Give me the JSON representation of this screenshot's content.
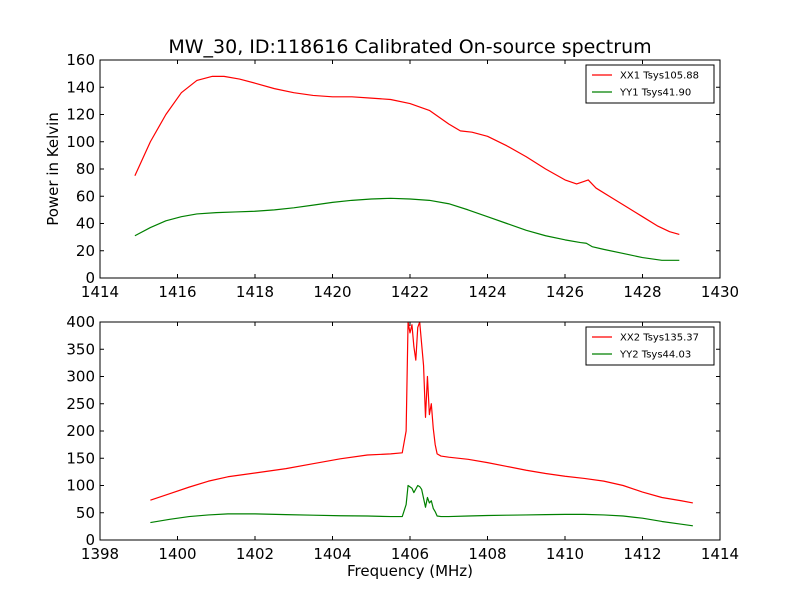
{
  "figure": {
    "title": "MW_30, ID:118616 Calibrated On-source spectrum",
    "xlabel": "Frequency (MHz)",
    "ylabel": "Power in Kelvin"
  },
  "chart_data": [
    {
      "type": "line",
      "xlim": [
        1414,
        1430
      ],
      "ylim": [
        0,
        160
      ],
      "xticks": [
        1414,
        1416,
        1418,
        1420,
        1422,
        1424,
        1426,
        1428,
        1430
      ],
      "yticks": [
        0,
        20,
        40,
        60,
        80,
        100,
        120,
        140,
        160
      ],
      "grid": false,
      "legend_position": "top-right",
      "series": [
        {
          "name": "XX1 Tsys105.88",
          "color": "#ff0000",
          "x": [
            1414.9,
            1415.3,
            1415.7,
            1416.1,
            1416.5,
            1416.9,
            1417.2,
            1417.6,
            1418.0,
            1418.5,
            1419.0,
            1419.5,
            1420.0,
            1420.5,
            1421.0,
            1421.5,
            1422.0,
            1422.5,
            1423.0,
            1423.3,
            1423.6,
            1424.0,
            1424.5,
            1425.0,
            1425.5,
            1426.0,
            1426.3,
            1426.5,
            1426.6,
            1426.8,
            1427.2,
            1427.6,
            1428.0,
            1428.4,
            1428.7,
            1428.95
          ],
          "y": [
            75,
            100,
            120,
            136,
            145,
            148,
            148,
            146,
            143,
            139,
            136,
            134,
            133,
            133,
            132,
            131,
            128,
            123,
            113,
            108,
            107,
            104,
            97,
            89,
            80,
            72,
            69,
            71,
            72,
            66,
            59,
            52,
            45,
            38,
            34,
            32
          ]
        },
        {
          "name": "YY1 Tsys41.90",
          "color": "#008000",
          "x": [
            1414.9,
            1415.3,
            1415.7,
            1416.1,
            1416.5,
            1417.0,
            1417.5,
            1418.0,
            1418.5,
            1419.0,
            1419.5,
            1420.0,
            1420.5,
            1421.0,
            1421.5,
            1422.0,
            1422.5,
            1423.0,
            1423.5,
            1424.0,
            1424.5,
            1425.0,
            1425.5,
            1426.0,
            1426.4,
            1426.55,
            1426.7,
            1427.0,
            1427.5,
            1428.0,
            1428.5,
            1428.95
          ],
          "y": [
            31,
            37,
            42,
            45,
            47,
            48,
            48.5,
            49,
            50,
            51.5,
            53.5,
            55.5,
            57,
            58,
            58.5,
            58,
            57,
            54.5,
            50,
            45,
            40,
            35,
            31,
            28,
            26,
            25.5,
            23,
            21,
            18,
            15,
            13,
            13
          ]
        }
      ]
    },
    {
      "type": "line",
      "xlim": [
        1398,
        1414
      ],
      "ylim": [
        0,
        400
      ],
      "xticks": [
        1398,
        1400,
        1402,
        1404,
        1406,
        1408,
        1410,
        1412,
        1414
      ],
      "yticks": [
        0,
        50,
        100,
        150,
        200,
        250,
        300,
        350,
        400
      ],
      "grid": false,
      "legend_position": "top-right",
      "series": [
        {
          "name": "XX2 Tsys135.37",
          "color": "#ff0000",
          "x": [
            1399.3,
            1399.8,
            1400.3,
            1400.8,
            1401.3,
            1402.0,
            1402.8,
            1403.5,
            1404.2,
            1404.9,
            1405.5,
            1405.8,
            1405.9,
            1405.95,
            1406.0,
            1406.05,
            1406.1,
            1406.15,
            1406.2,
            1406.25,
            1406.3,
            1406.35,
            1406.4,
            1406.45,
            1406.5,
            1406.55,
            1406.6,
            1406.65,
            1406.7,
            1406.8,
            1407.0,
            1407.5,
            1408.0,
            1408.5,
            1409.0,
            1409.5,
            1410.0,
            1410.5,
            1411.0,
            1411.5,
            1412.0,
            1412.5,
            1413.0,
            1413.3
          ],
          "y": [
            73,
            85,
            97,
            108,
            116,
            123,
            131,
            140,
            149,
            156,
            158,
            160,
            200,
            400,
            380,
            395,
            355,
            330,
            390,
            400,
            360,
            320,
            225,
            300,
            230,
            250,
            205,
            175,
            158,
            154,
            152,
            148,
            142,
            135,
            128,
            122,
            117,
            113,
            108,
            100,
            88,
            78,
            72,
            68
          ]
        },
        {
          "name": "YY2 Tsys44.03",
          "color": "#008000",
          "x": [
            1399.3,
            1399.8,
            1400.3,
            1400.8,
            1401.3,
            1402.0,
            1402.8,
            1403.5,
            1404.2,
            1404.9,
            1405.5,
            1405.8,
            1405.9,
            1405.95,
            1406.05,
            1406.1,
            1406.2,
            1406.25,
            1406.3,
            1406.4,
            1406.45,
            1406.5,
            1406.55,
            1406.6,
            1406.65,
            1406.7,
            1406.8,
            1407.0,
            1407.5,
            1408.0,
            1408.5,
            1409.0,
            1409.5,
            1410.0,
            1410.5,
            1411.0,
            1411.5,
            1412.0,
            1412.5,
            1413.0,
            1413.3
          ],
          "y": [
            32,
            38,
            43,
            46,
            48,
            48,
            46.5,
            45.5,
            44.5,
            44,
            43,
            43,
            65,
            100,
            95,
            87,
            100,
            98,
            93,
            60,
            78,
            68,
            72,
            58,
            52,
            44,
            43,
            43,
            44,
            45,
            45.5,
            46,
            46.5,
            47,
            47,
            46,
            44,
            40,
            34,
            29,
            26
          ]
        }
      ]
    }
  ]
}
